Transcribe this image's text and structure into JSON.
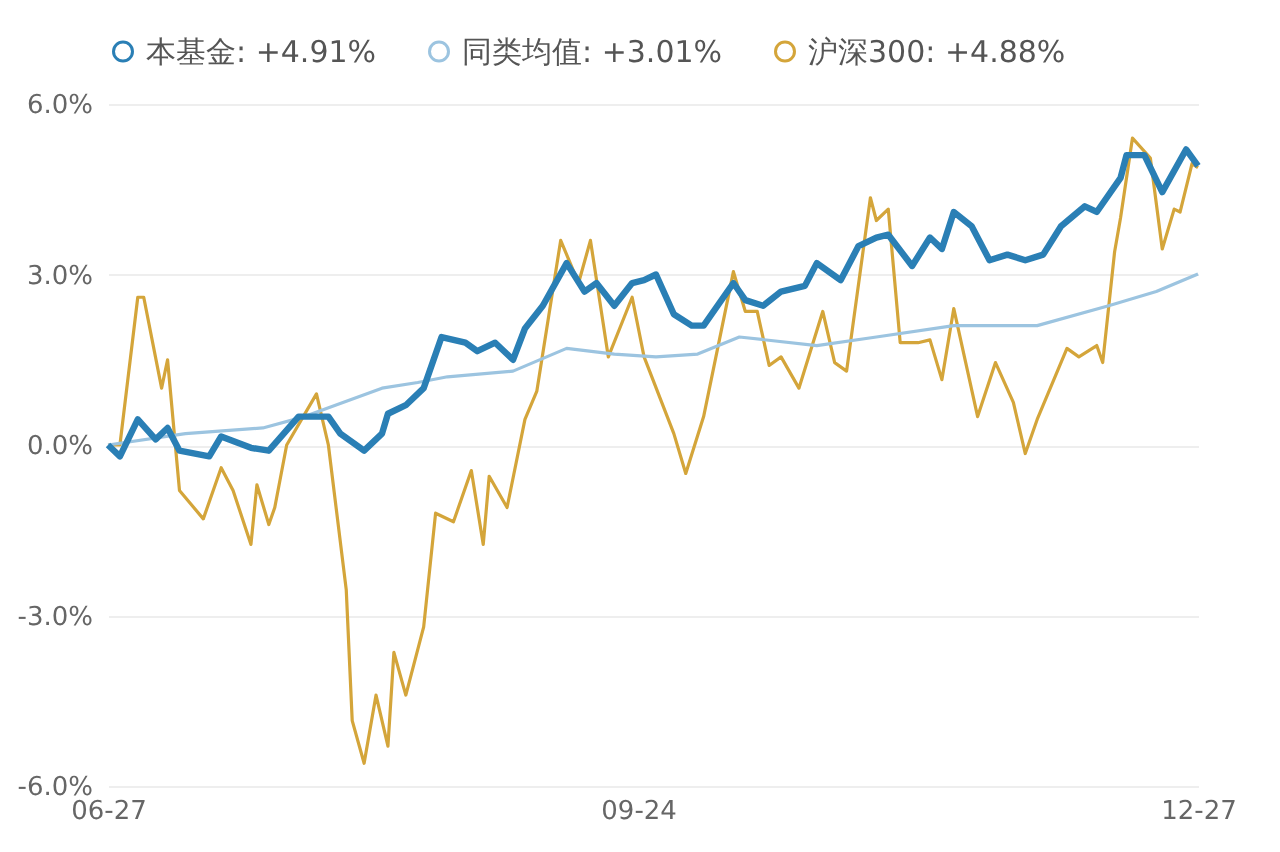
{
  "chart_data": {
    "type": "line",
    "legend": "top",
    "grid": "y",
    "marker": "none",
    "line_style": "solid",
    "xlim": [
      "--06-27",
      "--12-27"
    ],
    "xticks": [
      {
        "value": "--06-27",
        "label": "06-27"
      },
      {
        "value": "--09-24",
        "label": "09-24"
      },
      {
        "value": "--12-27",
        "label": "12-27"
      }
    ],
    "ylim": [
      -6,
      6
    ],
    "yticks": [
      {
        "value": -6,
        "label": "-6.0%"
      },
      {
        "value": -3,
        "label": "-3.0%"
      },
      {
        "value": 0,
        "label": "0.0%"
      },
      {
        "value": 3,
        "label": "3.0%"
      },
      {
        "value": 6,
        "label": "6.0%"
      }
    ],
    "series": [
      {
        "name": "本基金: +4.91%",
        "color": "#2a7fb5",
        "x": [
          "--06-27",
          "--06-29",
          "--07-02",
          "--07-05",
          "--07-07",
          "--07-09",
          "--07-14",
          "--07-16",
          "--07-21",
          "--07-24",
          "--07-29",
          "--08-03",
          "--08-05",
          "--08-09",
          "--08-12",
          "--08-13",
          "--08-16",
          "--08-19",
          "--08-22",
          "--08-26",
          "--08-28",
          "--08-31",
          "--09-03",
          "--09-05",
          "--09-08",
          "--09-12",
          "--09-15",
          "--09-17",
          "--09-20",
          "--09-23",
          "--09-25",
          "--09-27",
          "--09-30",
          "--10-03",
          "--10-05",
          "--10-10",
          "--10-12",
          "--10-15",
          "--10-18",
          "--10-22",
          "--10-24",
          "--10-28",
          "--10-31",
          "--11-03",
          "--11-05",
          "--11-09",
          "--11-12",
          "--11-14",
          "--11-16",
          "--11-19",
          "--11-22",
          "--11-25",
          "--11-28",
          "--12-01",
          "--12-04",
          "--12-08",
          "--12-10",
          "--12-14",
          "--12-15",
          "--12-18",
          "--12-21",
          "--12-25",
          "--12-27"
        ],
        "values": [
          0,
          -0.2,
          0.45,
          0.1,
          0.3,
          -0.1,
          -0.2,
          0.15,
          -0.05,
          -0.1,
          0.5,
          0.5,
          0.2,
          -0.1,
          0.2,
          0.55,
          0.7,
          1.0,
          1.9,
          1.8,
          1.65,
          1.8,
          1.5,
          2.05,
          2.45,
          3.2,
          2.7,
          2.85,
          2.45,
          2.85,
          2.9,
          3.0,
          2.3,
          2.1,
          2.1,
          2.85,
          2.55,
          2.45,
          2.7,
          2.8,
          3.2,
          2.9,
          3.5,
          3.65,
          3.7,
          3.15,
          3.65,
          3.45,
          4.1,
          3.85,
          3.25,
          3.35,
          3.25,
          3.35,
          3.85,
          4.2,
          4.1,
          4.7,
          5.1,
          5.1,
          4.45,
          5.2,
          4.91
        ]
      },
      {
        "name": "同类均值: +3.01%",
        "color": "#9cc4e0",
        "x": [
          "--06-27",
          "--07-10",
          "--07-23",
          "--07-30",
          "--08-12",
          "--08-18",
          "--08-23",
          "--09-03",
          "--09-12",
          "--09-20",
          "--09-27",
          "--10-04",
          "--10-11",
          "--10-24",
          "--11-03",
          "--11-16",
          "--11-30",
          "--12-12",
          "--12-20",
          "--12-27"
        ],
        "values": [
          0,
          0.2,
          0.3,
          0.5,
          1.0,
          1.1,
          1.2,
          1.3,
          1.7,
          1.6,
          1.55,
          1.6,
          1.9,
          1.75,
          1.9,
          2.1,
          2.1,
          2.45,
          2.7,
          3.01
        ]
      },
      {
        "name": "沪深300: +4.88%",
        "color": "#d4a53a",
        "x": [
          "--06-27",
          "--06-29",
          "--07-02",
          "--07-03",
          "--07-06",
          "--07-07",
          "--07-09",
          "--07-13",
          "--07-16",
          "--07-18",
          "--07-21",
          "--07-22",
          "--07-24",
          "--07-25",
          "--07-27",
          "--08-01",
          "--08-03",
          "--08-06",
          "--08-07",
          "--08-09",
          "--08-11",
          "--08-13",
          "--08-14",
          "--08-16",
          "--08-19",
          "--08-21",
          "--08-24",
          "--08-27",
          "--08-29",
          "--08-30",
          "--09-02",
          "--09-05",
          "--09-07",
          "--09-11",
          "--09-14",
          "--09-16",
          "--09-19",
          "--09-23",
          "--09-25",
          "--09-30",
          "--10-02",
          "--10-05",
          "--10-10",
          "--10-12",
          "--10-14",
          "--10-16",
          "--10-18",
          "--10-21",
          "--10-25",
          "--10-27",
          "--10-29",
          "--11-02",
          "--11-03",
          "--11-05",
          "--11-07",
          "--11-10",
          "--11-12",
          "--11-14",
          "--11-16",
          "--11-18",
          "--11-20",
          "--11-23",
          "--11-26",
          "--11-28",
          "--11-30",
          "--12-05",
          "--12-07",
          "--12-10",
          "--12-11",
          "--12-13",
          "--12-14",
          "--12-16",
          "--12-19",
          "--12-21",
          "--12-23",
          "--12-24",
          "--12-26",
          "--12-27"
        ],
        "values": [
          0,
          0,
          2.6,
          2.6,
          1.0,
          1.5,
          -0.8,
          -1.3,
          -0.4,
          -0.8,
          -1.75,
          -0.7,
          -1.4,
          -1.1,
          0,
          0.9,
          0,
          -2.55,
          -4.85,
          -5.6,
          -4.4,
          -5.3,
          -3.65,
          -4.4,
          -3.2,
          -1.2,
          -1.35,
          -0.45,
          -1.75,
          -0.55,
          -1.1,
          0.45,
          0.95,
          3.6,
          2.85,
          3.6,
          1.55,
          2.6,
          1.55,
          0.2,
          -0.5,
          0.5,
          3.05,
          2.35,
          2.35,
          1.4,
          1.55,
          1.0,
          2.35,
          1.45,
          1.3,
          4.35,
          3.95,
          4.15,
          1.8,
          1.8,
          1.85,
          1.15,
          2.4,
          1.45,
          0.5,
          1.45,
          0.75,
          -0.15,
          0.45,
          1.7,
          1.55,
          1.75,
          1.45,
          3.4,
          4.0,
          5.4,
          5.05,
          3.45,
          4.15,
          4.1,
          4.95,
          4.88
        ]
      }
    ]
  }
}
